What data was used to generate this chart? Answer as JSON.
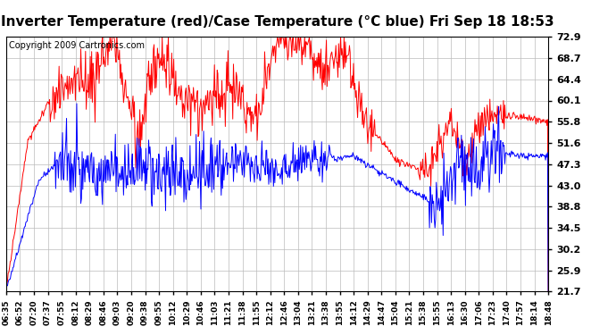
{
  "title": "Inverter Temperature (red)/Case Temperature (°C blue) Fri Sep 18 18:53",
  "copyright": "Copyright 2009 Cartronics.com",
  "yticks": [
    21.7,
    25.9,
    30.2,
    34.5,
    38.8,
    43.0,
    47.3,
    51.6,
    55.8,
    60.1,
    64.4,
    68.7,
    72.9
  ],
  "ylim": [
    21.7,
    72.9
  ],
  "xtick_labels": [
    "06:35",
    "06:52",
    "07:20",
    "07:37",
    "07:55",
    "08:12",
    "08:29",
    "08:46",
    "09:03",
    "09:20",
    "09:38",
    "09:55",
    "10:12",
    "10:29",
    "10:46",
    "11:03",
    "11:21",
    "11:38",
    "11:55",
    "12:12",
    "12:46",
    "13:04",
    "13:21",
    "13:38",
    "13:55",
    "14:12",
    "14:29",
    "14:47",
    "15:04",
    "15:21",
    "15:38",
    "15:55",
    "16:13",
    "16:30",
    "17:06",
    "17:23",
    "17:40",
    "17:57",
    "18:14",
    "18:48"
  ],
  "bg_color": "#ffffff",
  "grid_color": "#bbbbbb",
  "red_color": "#ff0000",
  "blue_color": "#0000ff",
  "title_fontsize": 11,
  "copyright_fontsize": 7
}
